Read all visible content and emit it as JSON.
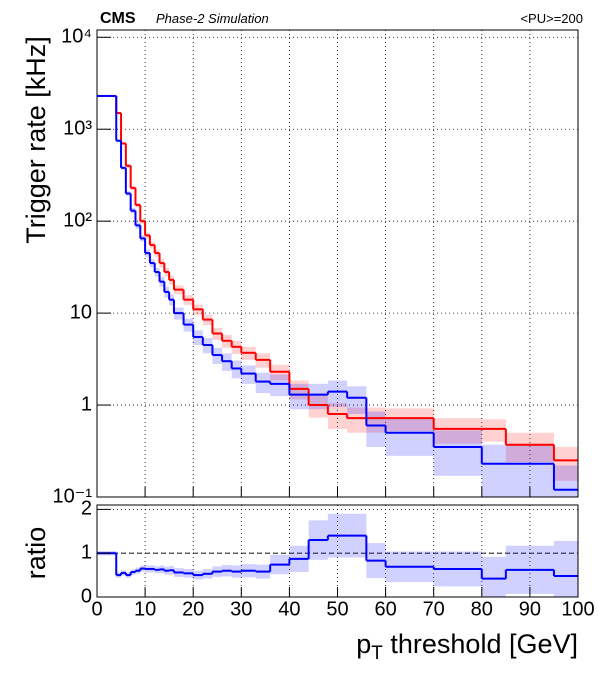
{
  "chart_data": [
    {
      "type": "histogram",
      "title": "CMS",
      "subtitle": "Phase-2 Simulation",
      "annotation": "<PU>=200",
      "ylabel": "Trigger rate [kHz]",
      "log_y": true,
      "grid": true,
      "xlim": [
        0,
        100
      ],
      "ylim": [
        0.1,
        12000
      ],
      "yticks": [
        {
          "value": 0.1,
          "label": "10⁻¹"
        },
        1,
        10,
        {
          "value": 100,
          "label": "10²"
        },
        {
          "value": 1000,
          "label": "10³"
        },
        {
          "value": 10000,
          "label": "10⁴"
        }
      ],
      "bins": [
        0,
        2,
        4,
        5,
        6,
        7,
        8,
        9,
        10,
        11,
        12,
        13,
        14,
        15,
        16,
        18,
        20,
        22,
        24,
        26,
        28,
        30,
        33,
        36,
        40,
        44,
        48,
        52,
        56,
        60,
        70,
        80,
        85,
        95,
        100
      ],
      "series": [
        {
          "color": "#ff0000",
          "values": [
            2300,
            2300,
            1500,
            700,
            400,
            230,
            150,
            100,
            70,
            55,
            45,
            35,
            28,
            23,
            18,
            14,
            11,
            8.5,
            6,
            5,
            4.3,
            3.7,
            3.1,
            2.3,
            1.5,
            1.0,
            0.8,
            0.72,
            0.72,
            0.72,
            0.55,
            0.55,
            0.37,
            0.25
          ],
          "errors": [
            50,
            50,
            40,
            25,
            18,
            12,
            9,
            7,
            5,
            4.5,
            4,
            3.5,
            3,
            2.6,
            2,
            1.7,
            1.4,
            1.1,
            0.9,
            0.8,
            0.7,
            0.6,
            0.55,
            0.45,
            0.35,
            0.27,
            0.25,
            0.22,
            0.22,
            0.2,
            0.17,
            0.15,
            0.13,
            0.1
          ]
        },
        {
          "color": "#0000ff",
          "values": [
            2300,
            2300,
            750,
            380,
            200,
            130,
            90,
            65,
            45,
            35,
            28,
            22,
            17,
            14,
            10,
            7.5,
            5.5,
            4.5,
            3.5,
            3,
            2.5,
            2.2,
            1.8,
            1.7,
            1.3,
            1.3,
            1.4,
            1.2,
            0.6,
            0.5,
            0.35,
            0.23,
            0.23,
            0.12
          ],
          "errors": [
            50,
            50,
            25,
            17,
            12,
            9,
            7,
            5,
            4,
            3.5,
            3,
            2.6,
            2.2,
            1.9,
            1.5,
            1.2,
            1,
            0.85,
            0.7,
            0.65,
            0.55,
            0.5,
            0.45,
            0.45,
            0.4,
            0.4,
            0.45,
            0.4,
            0.25,
            0.22,
            0.18,
            0.14,
            0.14,
            0.1
          ]
        }
      ]
    },
    {
      "type": "histogram",
      "ylabel": "ratio",
      "xlabel": [
        "p",
        "T",
        " threshold [GeV]"
      ],
      "grid": true,
      "xlim": [
        0,
        100
      ],
      "ylim": [
        0,
        2.1
      ],
      "yticks": [
        0,
        1,
        2
      ],
      "reference_line": 1,
      "xticks": [
        0,
        10,
        20,
        30,
        40,
        50,
        60,
        70,
        80,
        90,
        100
      ],
      "bins": [
        0,
        2,
        4,
        5,
        6,
        7,
        8,
        9,
        10,
        11,
        12,
        13,
        14,
        15,
        16,
        18,
        20,
        22,
        24,
        26,
        28,
        30,
        33,
        36,
        40,
        44,
        48,
        52,
        56,
        60,
        70,
        80,
        85,
        95,
        100
      ],
      "series": [
        {
          "color": "#0000ff",
          "values": [
            1,
            1,
            0.5,
            0.55,
            0.5,
            0.57,
            0.6,
            0.65,
            0.64,
            0.64,
            0.62,
            0.63,
            0.6,
            0.61,
            0.56,
            0.54,
            0.5,
            0.53,
            0.58,
            0.6,
            0.58,
            0.6,
            0.58,
            0.74,
            0.87,
            1.3,
            1.4,
            1.4,
            0.83,
            0.69,
            0.64,
            0.42,
            0.62,
            0.48
          ],
          "errors": [
            0.05,
            0.05,
            0.06,
            0.06,
            0.06,
            0.06,
            0.07,
            0.07,
            0.08,
            0.08,
            0.08,
            0.09,
            0.09,
            0.1,
            0.1,
            0.1,
            0.1,
            0.11,
            0.12,
            0.13,
            0.14,
            0.15,
            0.16,
            0.22,
            0.3,
            0.45,
            0.5,
            0.5,
            0.4,
            0.35,
            0.4,
            0.5,
            0.55,
            0.8
          ]
        }
      ]
    }
  ]
}
